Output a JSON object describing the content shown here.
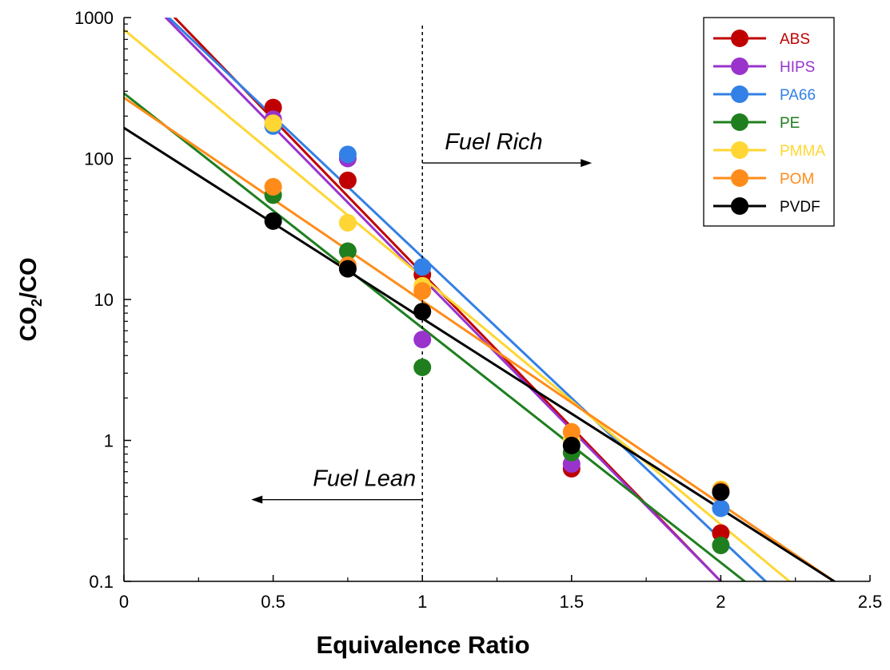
{
  "chart_data": {
    "type": "scatter",
    "xlabel": "Equivalence Ratio",
    "ylabel_main": "CO",
    "ylabel_sub": "2",
    "ylabel_tail": "/CO",
    "xlim": [
      0,
      2.5
    ],
    "ylim": [
      0.1,
      1000
    ],
    "yscale": "log",
    "grid": false,
    "legend_position": "top-right",
    "x_ticks": [
      {
        "value": 0,
        "label": "0"
      },
      {
        "value": 0.5,
        "label": "0.5"
      },
      {
        "value": 1,
        "label": "1"
      },
      {
        "value": 1.5,
        "label": "1.5"
      },
      {
        "value": 2,
        "label": "2"
      },
      {
        "value": 2.5,
        "label": "2.5"
      }
    ],
    "y_ticks": [
      {
        "value": 0.1,
        "label": "0.1"
      },
      {
        "value": 1,
        "label": "1"
      },
      {
        "value": 10,
        "label": "10"
      },
      {
        "value": 100,
        "label": "100"
      },
      {
        "value": 1000,
        "label": "1000"
      }
    ],
    "annotations": {
      "fuel_rich": "Fuel Rich",
      "fuel_lean": "Fuel Lean",
      "divider_x": 1
    },
    "series": [
      {
        "name": "ABS",
        "color": "#c00000",
        "points": [
          [
            0.5,
            230
          ],
          [
            0.75,
            70
          ],
          [
            1.0,
            15
          ],
          [
            1.5,
            0.63
          ],
          [
            2.0,
            0.22
          ]
        ],
        "fit": [
          [
            0.17,
            1000
          ],
          [
            2.0,
            0.1
          ]
        ]
      },
      {
        "name": "HIPS",
        "color": "#9933cc",
        "points": [
          [
            0.5,
            190
          ],
          [
            0.75,
            100
          ],
          [
            1.0,
            5.2
          ],
          [
            1.5,
            0.68
          ]
        ],
        "fit": [
          [
            0.14,
            1000
          ],
          [
            2.0,
            0.1
          ]
        ]
      },
      {
        "name": "PA66",
        "color": "#3380e6",
        "points": [
          [
            0.5,
            170
          ],
          [
            0.75,
            107
          ],
          [
            1.0,
            17
          ],
          [
            2.0,
            0.33
          ]
        ],
        "fit": [
          [
            0.15,
            1000
          ],
          [
            2.15,
            0.1
          ]
        ]
      },
      {
        "name": "PE",
        "color": "#1f7f1f",
        "points": [
          [
            0.5,
            55
          ],
          [
            0.75,
            22
          ],
          [
            1.0,
            3.3
          ],
          [
            1.5,
            0.82
          ],
          [
            2.0,
            0.18
          ]
        ],
        "fit": [
          [
            0.0,
            290
          ],
          [
            2.08,
            0.1
          ]
        ]
      },
      {
        "name": "PMMA",
        "color": "#ffd633",
        "points": [
          [
            0.5,
            178
          ],
          [
            0.75,
            35
          ],
          [
            1.0,
            12.5
          ],
          [
            1.5,
            1.0
          ],
          [
            2.0,
            0.45
          ]
        ],
        "fit": [
          [
            0.0,
            820
          ],
          [
            2.23,
            0.1
          ]
        ]
      },
      {
        "name": "POM",
        "color": "#ff8c1a",
        "points": [
          [
            0.5,
            63
          ],
          [
            0.75,
            17.5
          ],
          [
            1.0,
            11.5
          ],
          [
            1.5,
            1.15
          ],
          [
            2.0,
            0.44
          ]
        ],
        "fit": [
          [
            0.0,
            270
          ],
          [
            2.38,
            0.1
          ]
        ]
      },
      {
        "name": "PVDF",
        "color": "#000000",
        "points": [
          [
            0.5,
            36
          ],
          [
            0.75,
            16.5
          ],
          [
            1.0,
            8.2
          ],
          [
            1.5,
            0.92
          ],
          [
            2.0,
            0.43
          ]
        ],
        "fit": [
          [
            0.0,
            165
          ],
          [
            2.38,
            0.1
          ]
        ]
      }
    ]
  }
}
